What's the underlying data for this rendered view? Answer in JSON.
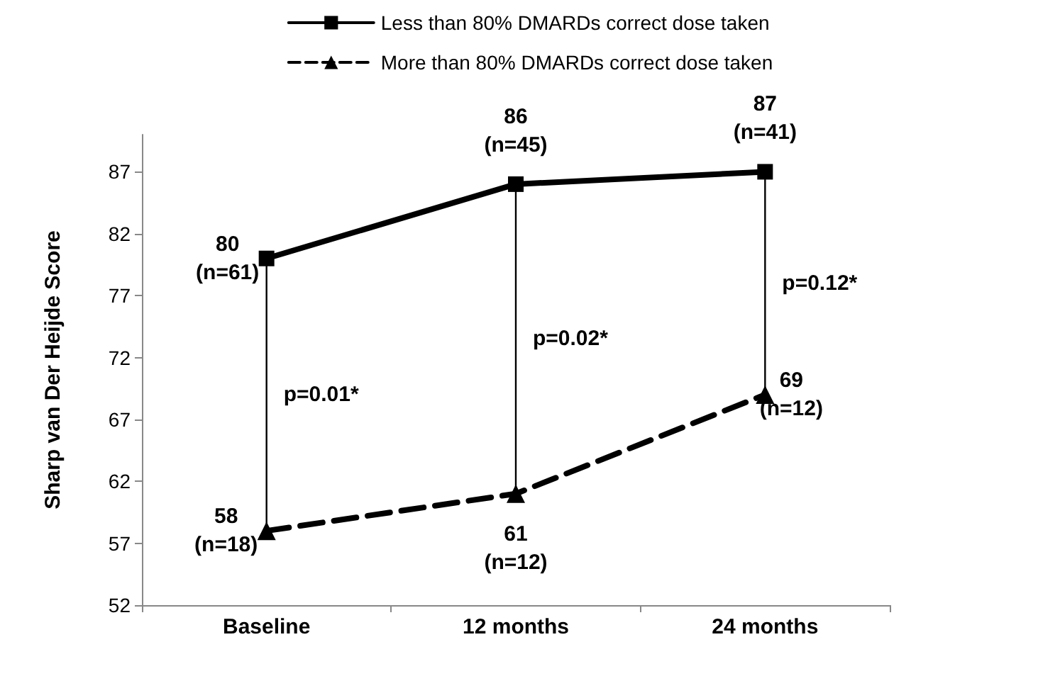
{
  "chart_data": {
    "type": "line",
    "ylabel": "Sharp van Der Heijde Score",
    "categories": [
      "Baseline",
      "12 months",
      "24 months"
    ],
    "series": [
      {
        "name": "Less than 80% DMARDs correct dose taken",
        "color": "#000000",
        "values": [
          80,
          86,
          87
        ],
        "value_labels": [
          "80\n(n=61)",
          "86\n(n=45)",
          "87\n(n=41)"
        ],
        "marker": "square",
        "line_style": "solid"
      },
      {
        "name": "More than 80% DMARDs correct dose taken",
        "color": "#000000",
        "values": [
          58,
          61,
          69
        ],
        "value_labels": [
          "58\n(n=18)",
          "61\n(n=12)",
          "69\n(n=12)"
        ],
        "marker": "triangle",
        "line_style": "dashed"
      }
    ],
    "annotations": [
      "p=0.01*",
      "p=0.02*",
      "p=0.12*"
    ],
    "ylim": [
      52,
      90
    ],
    "yticks": [
      52,
      57,
      62,
      67,
      72,
      77,
      82,
      87
    ],
    "grid": false,
    "legend": "top"
  }
}
